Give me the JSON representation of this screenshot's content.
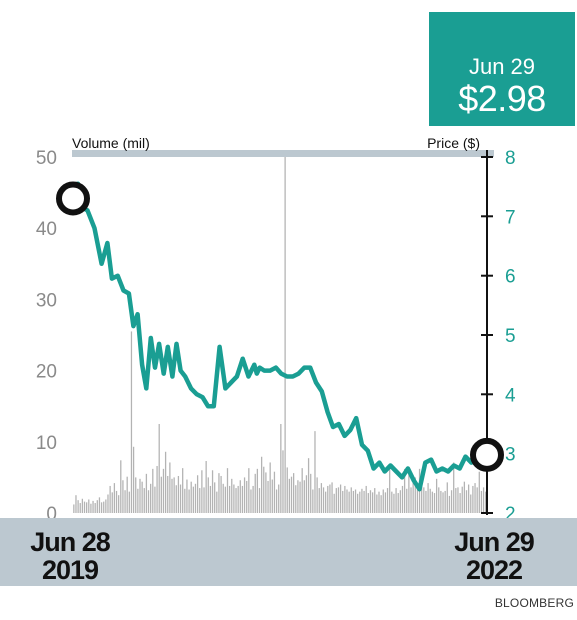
{
  "callout": {
    "date": "Jun 29",
    "price": "$2.98"
  },
  "x_labels": {
    "start": [
      "Jun 28",
      "2019"
    ],
    "end": [
      "Jun 29",
      "2022"
    ]
  },
  "source": "BLOOMBERG",
  "colors": {
    "price_line": "#1a9e93",
    "volume_bars": "#b3b3b3",
    "band": "#bcc8d0",
    "marker": "#111111"
  },
  "chart_data": {
    "type": "line",
    "axes": {
      "left": {
        "label": "Volume (mil)",
        "ticks": [
          "50",
          "40",
          "30",
          "20",
          "10",
          "0"
        ],
        "range": [
          0,
          50
        ]
      },
      "right": {
        "label": "Price ($)",
        "ticks": [
          "8",
          "7",
          "6",
          "5",
          "4",
          "3",
          "2"
        ],
        "range": [
          2,
          8
        ]
      }
    },
    "x_range": [
      "Jun 28 2019",
      "Jun 29 2022"
    ],
    "price_series": {
      "name": "Price ($)",
      "x": [
        0.0,
        0.012,
        0.021,
        0.035,
        0.052,
        0.069,
        0.083,
        0.094,
        0.108,
        0.122,
        0.135,
        0.146,
        0.156,
        0.167,
        0.177,
        0.188,
        0.198,
        0.208,
        0.219,
        0.229,
        0.24,
        0.25,
        0.26,
        0.271,
        0.285,
        0.299,
        0.313,
        0.326,
        0.34,
        0.354,
        0.368,
        0.382,
        0.396,
        0.41,
        0.424,
        0.438,
        0.444,
        0.451,
        0.462,
        0.476,
        0.49,
        0.503,
        0.517,
        0.531,
        0.545,
        0.559,
        0.573,
        0.587,
        0.601,
        0.615,
        0.628,
        0.642,
        0.656,
        0.67,
        0.684,
        0.698,
        0.712,
        0.726,
        0.74,
        0.753,
        0.767,
        0.781,
        0.795,
        0.809,
        0.823,
        0.837,
        0.851,
        0.865,
        0.878,
        0.892,
        0.906,
        0.92,
        0.934,
        0.948,
        0.962,
        0.976,
        1.0
      ],
      "y": [
        7.3,
        7.55,
        7.15,
        7.1,
        6.8,
        6.2,
        6.55,
        5.95,
        6.0,
        5.75,
        5.7,
        5.15,
        5.35,
        4.5,
        4.1,
        4.95,
        4.45,
        4.85,
        4.35,
        4.8,
        4.3,
        4.85,
        4.4,
        4.3,
        4.1,
        4.0,
        3.95,
        3.8,
        3.8,
        4.8,
        4.1,
        4.2,
        4.3,
        4.6,
        4.3,
        4.5,
        4.35,
        4.45,
        4.4,
        4.4,
        4.45,
        4.35,
        4.3,
        4.3,
        4.35,
        4.45,
        4.45,
        4.2,
        4.05,
        3.7,
        3.45,
        3.5,
        3.3,
        3.4,
        3.6,
        3.15,
        3.05,
        2.75,
        2.85,
        2.7,
        2.8,
        2.7,
        2.6,
        2.75,
        2.55,
        2.4,
        2.85,
        2.9,
        2.7,
        2.75,
        2.7,
        2.8,
        2.75,
        2.95,
        2.85,
        2.98,
        2.98
      ]
    },
    "volume_series": {
      "name": "Volume (mil)",
      "values": [
        1.2,
        2.5,
        1.8,
        1.4,
        2.0,
        1.6,
        1.5,
        1.9,
        1.3,
        1.7,
        1.4,
        1.8,
        2.2,
        1.5,
        1.6,
        1.9,
        2.6,
        3.8,
        2.9,
        4.2,
        3.1,
        2.5,
        7.4,
        4.6,
        3.2,
        5.1,
        3.0,
        25.5,
        9.3,
        5.0,
        3.4,
        4.8,
        4.4,
        3.5,
        5.5,
        3.2,
        4.1,
        6.2,
        3.7,
        6.6,
        12.5,
        5.1,
        6.2,
        8.6,
        5.2,
        7.1,
        4.8,
        5.0,
        3.9,
        5.2,
        4.0,
        6.3,
        3.4,
        4.7,
        3.3,
        4.4,
        3.7,
        4.1,
        5.3,
        3.5,
        6.0,
        3.6,
        7.3,
        5.0,
        3.8,
        6.0,
        4.3,
        3.0,
        5.6,
        5.2,
        4.1,
        3.7,
        6.3,
        3.8,
        4.8,
        4.0,
        3.5,
        3.8,
        4.6,
        3.8,
        5.0,
        4.5,
        6.3,
        3.3,
        3.8,
        5.5,
        6.2,
        3.5,
        7.9,
        6.5,
        5.7,
        4.5,
        7.1,
        4.7,
        5.8,
        3.3,
        4.0,
        12.5,
        8.8,
        50.0,
        6.4,
        4.8,
        5.1,
        5.6,
        3.9,
        4.6,
        4.4,
        6.3,
        4.6,
        5.3,
        7.7,
        5.5,
        3.3,
        11.5,
        5.0,
        3.5,
        4.2,
        3.6,
        3.0,
        3.8,
        4.0,
        4.3,
        2.7,
        3.5,
        3.6,
        4.0,
        3.1,
        3.8,
        3.3,
        3.0,
        3.6,
        3.1,
        3.3,
        2.7,
        3.0,
        3.4,
        3.1,
        3.8,
        2.8,
        3.2,
        2.9,
        3.5,
        2.6,
        3.0,
        2.5,
        3.3,
        2.9,
        3.5,
        6.4,
        3.0,
        2.7,
        3.5,
        2.8,
        3.2,
        3.8,
        6.2,
        3.4,
        5.7,
        3.6,
        4.8,
        5.0,
        3.3,
        6.2,
        3.7,
        3.6,
        3.1,
        4.2,
        3.4,
        3.0,
        2.8,
        4.8,
        3.6,
        3.1,
        2.9,
        3.1,
        4.3,
        2.4,
        3.2,
        7.1,
        3.5,
        3.6,
        2.8,
        3.7,
        4.4,
        3.2,
        4.0,
        2.6,
        3.8,
        4.2,
        3.6,
        5.8,
        3.1,
        3.6,
        3.0
      ]
    },
    "markers": [
      {
        "x": 0.0,
        "price": 7.3
      },
      {
        "x": 1.0,
        "price": 2.98
      }
    ]
  }
}
